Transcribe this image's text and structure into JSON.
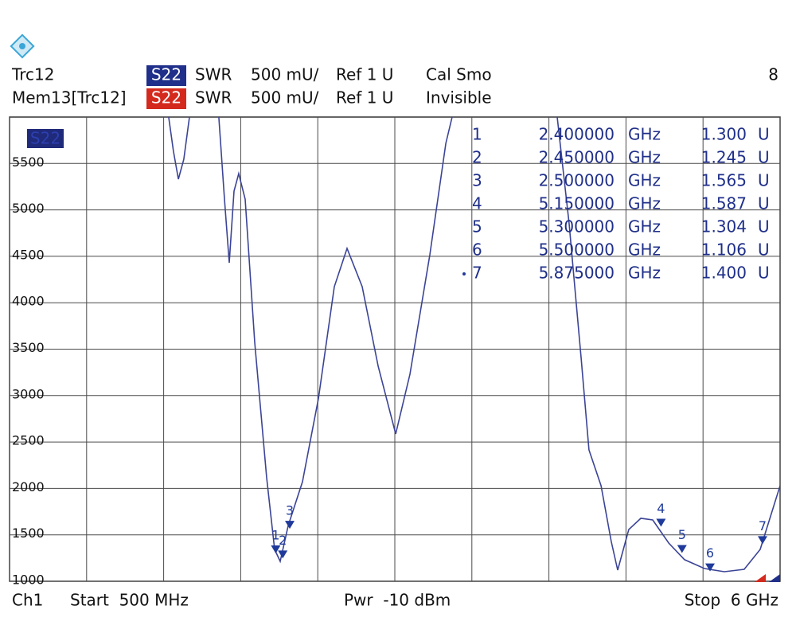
{
  "header": {
    "trace": "Trc12",
    "trace_param": "S22",
    "trace_format": "SWR",
    "trace_scale": "500 mU/",
    "trace_ref": "Ref 1 U",
    "trace_info": "Cal Smo",
    "count": "8",
    "memory": "Mem13[Trc12]",
    "memory_param": "S22",
    "memory_format": "SWR",
    "memory_scale": "500 mU/",
    "memory_ref": "Ref 1 U",
    "memory_info": "Invisible"
  },
  "footer": {
    "channel": "Ch1",
    "start": "Start  500 MHz",
    "power": "Pwr  -10 dBm",
    "stop": "Stop  6 GHz"
  },
  "chart_data": {
    "type": "line",
    "x": [
      1.636,
      1.67,
      1.705,
      1.744,
      1.784,
      null,
      1.994,
      2.034,
      2.068,
      2.102,
      2.136,
      2.182,
      2.25,
      2.335,
      2.392,
      2.432,
      2.489,
      2.591,
      2.705,
      2.818,
      2.909,
      3.017,
      3.131,
      3.256,
      3.358,
      3.5,
      3.614,
      3.659,
      null,
      4.409,
      4.494,
      4.58,
      4.636,
      4.722,
      4.795,
      4.841,
      4.92,
      5.006,
      5.091,
      5.205,
      5.318,
      5.46,
      5.602,
      5.744,
      5.858,
      6.0
    ],
    "series": [
      {
        "name": "S22",
        "color": "#3b4496",
        "values": [
          6000,
          5631,
          5331,
          5545,
          6000,
          null,
          6000,
          5116,
          4430,
          5202,
          5391,
          5116,
          3573,
          2115,
          1343,
          1214,
          1600,
          2072,
          2972,
          4173,
          4585,
          4173,
          3316,
          2587,
          3230,
          4516,
          5717,
          6000,
          null,
          6000,
          4859,
          3401,
          2415,
          2029,
          1429,
          1120,
          1557,
          1678,
          1660,
          1412,
          1232,
          1137,
          1103,
          1129,
          1343,
          2029
        ]
      }
    ],
    "xlim": [
      0.5,
      6.0
    ],
    "xgrid": [
      0.5,
      1.05,
      1.6,
      2.15,
      2.7,
      3.25,
      3.8,
      4.35,
      4.9,
      5.45,
      6.0
    ],
    "ylim": [
      1000,
      6000
    ],
    "yticks": [
      1000,
      1500,
      2000,
      2500,
      3000,
      3500,
      4000,
      4500,
      5000,
      5500
    ],
    "grid": true,
    "marker_color": "#1f3a9a",
    "markers": [
      {
        "id": "1",
        "freq": {
          "value": 2.4,
          "label": "2.400000"
        },
        "freq_unit": "GHz",
        "swr": {
          "value": 1300,
          "label": "1.300"
        },
        "swr_unit": "U"
      },
      {
        "id": "2",
        "freq": {
          "value": 2.45,
          "label": "2.450000"
        },
        "freq_unit": "GHz",
        "swr": {
          "value": 1245,
          "label": "1.245"
        },
        "swr_unit": "U"
      },
      {
        "id": "3",
        "freq": {
          "value": 2.5,
          "label": "2.500000"
        },
        "freq_unit": "GHz",
        "swr": {
          "value": 1565,
          "label": "1.565"
        },
        "swr_unit": "U"
      },
      {
        "id": "4",
        "freq": {
          "value": 5.15,
          "label": "5.150000"
        },
        "freq_unit": "GHz",
        "swr": {
          "value": 1587,
          "label": "1.587"
        },
        "swr_unit": "U"
      },
      {
        "id": "5",
        "freq": {
          "value": 5.3,
          "label": "5.300000"
        },
        "freq_unit": "GHz",
        "swr": {
          "value": 1304,
          "label": "1.304"
        },
        "swr_unit": "U"
      },
      {
        "id": "6",
        "freq": {
          "value": 5.5,
          "label": "5.500000"
        },
        "freq_unit": "GHz",
        "swr": {
          "value": 1106,
          "label": "1.106"
        },
        "swr_unit": "U"
      },
      {
        "id": "7",
        "freq": {
          "value": 5.875,
          "label": "5.875000"
        },
        "freq_unit": "GHz",
        "swr": {
          "value": 1400,
          "label": "1.400"
        },
        "swr_unit": "U",
        "active": true
      }
    ]
  }
}
